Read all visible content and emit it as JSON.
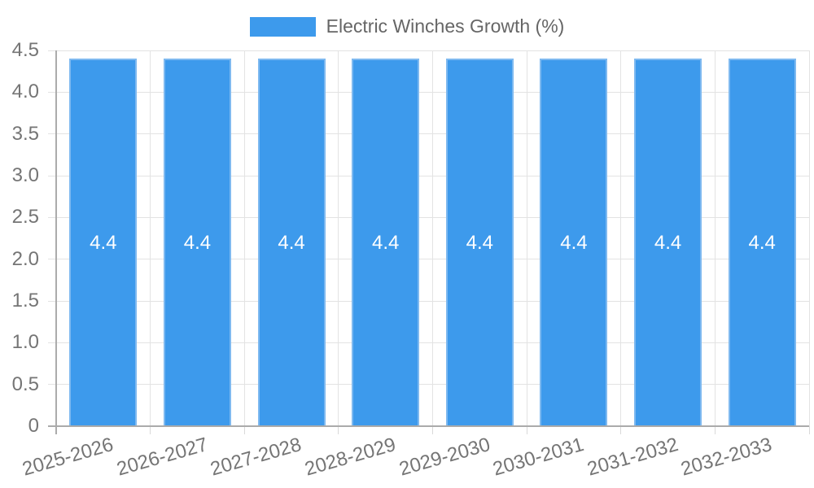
{
  "chart_data": {
    "type": "bar",
    "title": "Electric Winches Growth (%)",
    "categories": [
      "2025-2026",
      "2026-2027",
      "2027-2028",
      "2028-2029",
      "2029-2030",
      "2030-2031",
      "2031-2032",
      "2032-2033"
    ],
    "series": [
      {
        "name": "Electric Winches Growth (%)",
        "values": [
          4.4,
          4.4,
          4.4,
          4.4,
          4.4,
          4.4,
          4.4,
          4.4
        ],
        "value_labels": [
          "4.4",
          "4.4",
          "4.4",
          "4.4",
          "4.4",
          "4.4",
          "4.4",
          "4.4"
        ]
      }
    ],
    "xlabel": "",
    "ylabel": "",
    "ylim": [
      0,
      4.5
    ],
    "yticks": [
      "0",
      "0.5",
      "1.0",
      "1.5",
      "2.0",
      "2.5",
      "3.0",
      "3.5",
      "4.0",
      "4.5"
    ],
    "grid": true,
    "legend_position": "top",
    "xtick_rotation_deg": -16,
    "colors": {
      "bar_fill": "#3D9AEC",
      "bar_border": "#7EB9F0",
      "gridline": "#E3E3E3",
      "axis_line": "#ABABAB",
      "x_tick_mark": "#D9D9D9",
      "tick_text": "#757575",
      "legend_text": "#666666",
      "value_text": "#FFFFFF",
      "background": "#FFFFFF"
    }
  }
}
